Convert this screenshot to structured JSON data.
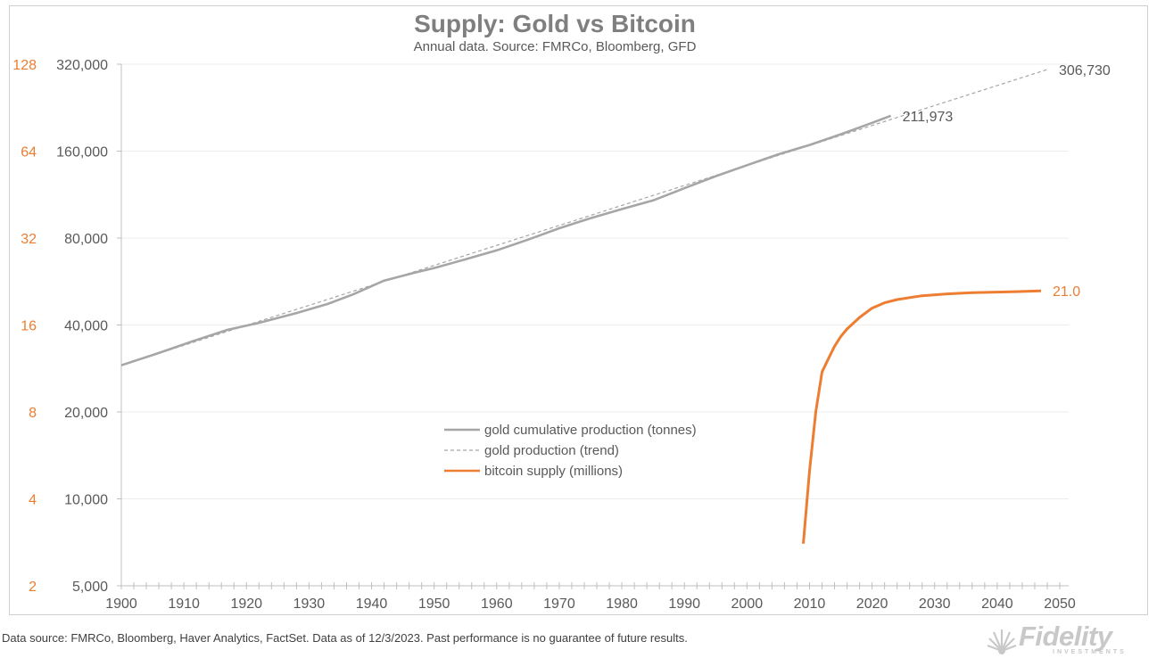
{
  "chart_data": {
    "type": "line",
    "title": "Supply: Gold vs Bitcoin",
    "subtitle": "Annual data.  Source: FMRCo, Bloomberg, GFD",
    "x_ticks": [
      1900,
      1910,
      1920,
      1930,
      1940,
      1950,
      1960,
      1970,
      1980,
      1990,
      2000,
      2010,
      2020,
      2030,
      2040,
      2050
    ],
    "xlim": [
      1900,
      2050
    ],
    "y_left_ticks": [
      5000,
      10000,
      20000,
      40000,
      80000,
      160000,
      320000
    ],
    "y_left_tick_labels": [
      "5,000",
      "10,000",
      "20,000",
      "40,000",
      "80,000",
      "160,000",
      "320,000"
    ],
    "y_left_scale": "log2",
    "y_left_lim": [
      5000,
      320000
    ],
    "y_secondary_ticks": [
      2,
      4,
      8,
      16,
      32,
      64,
      128
    ],
    "y_secondary_tick_labels": [
      "2",
      "4",
      "8",
      "16",
      "32",
      "64",
      "128"
    ],
    "y_secondary_scale": "log2",
    "y_secondary_lim": [
      2,
      128
    ],
    "series": [
      {
        "name": "gold cumulative production (tonnes)",
        "axis": "left",
        "color": "#a6a6a6",
        "style": "solid",
        "x": [
          1900,
          1906,
          1912,
          1917,
          1922,
          1928,
          1933,
          1937,
          1942,
          1947,
          1950,
          1955,
          1960,
          1965,
          1970,
          1975,
          1980,
          1985,
          1990,
          1995,
          2000,
          2005,
          2010,
          2015,
          2020,
          2023
        ],
        "values": [
          29000,
          32000,
          35500,
          38500,
          40700,
          44000,
          47300,
          51000,
          57000,
          60800,
          63000,
          67500,
          72500,
          79000,
          86500,
          93700,
          100800,
          108000,
          119000,
          131000,
          143000,
          156000,
          168000,
          183000,
          200500,
          211973
        ]
      },
      {
        "name": "gold production (trend)",
        "axis": "left",
        "color": "#a6a6a6",
        "style": "dashed",
        "x": [
          1900,
          2048
        ],
        "values": [
          29000,
          306730
        ]
      },
      {
        "name": "bitcoin supply (millions)",
        "axis": "right",
        "color": "#ed7d31",
        "style": "solid",
        "x": [
          2009,
          2010,
          2011,
          2012,
          2013,
          2014,
          2015,
          2016,
          2018,
          2020,
          2022,
          2024,
          2028,
          2032,
          2036,
          2040,
          2044,
          2047
        ],
        "values": [
          2.8,
          5.0,
          8.0,
          11.0,
          12.2,
          13.5,
          14.6,
          15.5,
          17.0,
          18.3,
          19.1,
          19.6,
          20.2,
          20.5,
          20.7,
          20.8,
          20.9,
          21.0
        ]
      }
    ],
    "end_labels": [
      {
        "text": "306,730",
        "series": 1,
        "x": 2048,
        "value": 306730
      },
      {
        "text": "211,973",
        "series": 0,
        "x": 2023,
        "value": 211973
      },
      {
        "text": "21.0",
        "series": 2,
        "x": 2047,
        "value": 21.0
      }
    ],
    "legend": {
      "placement": "center",
      "entries": [
        "gold cumulative production (tonnes)",
        "gold production (trend)",
        "bitcoin supply (millions)"
      ]
    },
    "grid": "horizontal"
  },
  "footnote": "Data source: FMRCo, Bloomberg, Haver Analytics, FactSet. Data as of 12/3/2023. Past performance is no guarantee of future results.",
  "logo": {
    "word": "Fidelity",
    "sub": "INVESTMENTS"
  }
}
